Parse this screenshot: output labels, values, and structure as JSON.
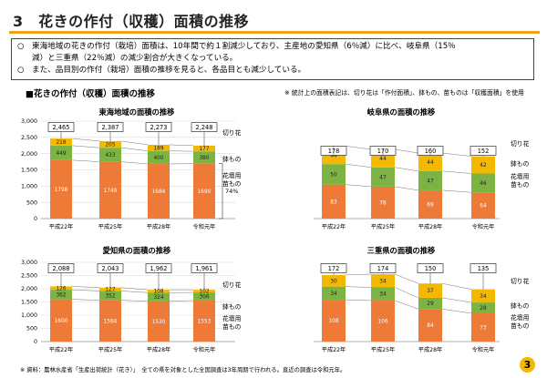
{
  "header": {
    "title": "3　花きの作付（収穫）面積の推移"
  },
  "summary": {
    "bullet": "○",
    "line1": "東海地域の花きの作付（栽培）面積は、10年間で約１割減少しており、主産地の愛知県（6％減）に比べ、岐阜県（15％",
    "line2": "減）と三重県（22％減）の減少割合が大きくなっている。",
    "line3": "また、品目別の作付（栽培）面積の推移を見ると、各品目とも減少している。"
  },
  "section_title": "■花きの作付（収穫）面積の推移",
  "note": "※ 統計上の面積表記は、切り花は「作付面積」、鉢もの、苗ものは「収穫面積」を使用",
  "footer": "※ 資料：農林水産省「生産出荷統計（花き）」　全ての県を対象とした全国調査は3年周期で行われる。直近の調査は令和元年。",
  "page_number": "3",
  "colors": {
    "cut": "#ee7a38",
    "pot": "#7cb342",
    "bed": "#f5b800"
  },
  "chart_data": [
    {
      "type": "bar",
      "title": "東海地域の面積の推移",
      "categories": [
        "平成22年",
        "平成25年",
        "平成28年",
        "令和元年"
      ],
      "series": [
        {
          "name": "切り花",
          "values": [
            1798,
            1749,
            1684,
            1690
          ]
        },
        {
          "name": "鉢もの",
          "values": [
            449,
            433,
            400,
            380
          ]
        },
        {
          "name": "花壇用苗もの",
          "values": [
            218,
            205,
            189,
            177
          ]
        }
      ],
      "totals": [
        2465,
        2387,
        2273,
        2248
      ],
      "ylim": [
        0,
        3000
      ],
      "yticks": [
        "0",
        "500",
        "1,000",
        "1,500",
        "2,000",
        "2,500",
        "3,000"
      ],
      "annotation": "74%",
      "legend_position": "right"
    },
    {
      "type": "bar",
      "title": "岐阜県の面積の推移",
      "categories": [
        "平成22年",
        "平成25年",
        "平成28年",
        "令和元年"
      ],
      "series": [
        {
          "name": "切り花",
          "values": [
            83,
            78,
            69,
            64
          ]
        },
        {
          "name": "鉢もの",
          "values": [
            50,
            47,
            47,
            46
          ]
        },
        {
          "name": "花壇用苗もの",
          "values": [
            44,
            44,
            44,
            42
          ]
        }
      ],
      "totals": [
        178,
        170,
        160,
        152
      ],
      "ylim": [
        0,
        200
      ],
      "legend_position": "right"
    },
    {
      "type": "bar",
      "title": "愛知県の面積の推移",
      "categories": [
        "平成22年",
        "平成25年",
        "平成28年",
        "令和元年"
      ],
      "series": [
        {
          "name": "切り花",
          "values": [
            1600,
            1564,
            1530,
            1553
          ]
        },
        {
          "name": "鉢もの",
          "values": [
            362,
            352,
            324,
            306
          ]
        },
        {
          "name": "花壇用苗もの",
          "values": [
            126,
            127,
            108,
            102
          ]
        }
      ],
      "totals": [
        2088,
        2043,
        1962,
        1961
      ],
      "ylim": [
        0,
        3000
      ],
      "yticks": [
        "0",
        "500",
        "1,000",
        "1,500",
        "2,000",
        "2,500",
        "3,000"
      ],
      "legend_position": "right"
    },
    {
      "type": "bar",
      "title": "三重県の面積の推移",
      "categories": [
        "平成22年",
        "平成25年",
        "平成28年",
        "令和元年"
      ],
      "series": [
        {
          "name": "切り花",
          "values": [
            108,
            106,
            84,
            73
          ]
        },
        {
          "name": "鉢もの",
          "values": [
            34,
            34,
            29,
            28
          ]
        },
        {
          "name": "花壇用苗もの",
          "values": [
            30,
            34,
            37,
            34
          ]
        }
      ],
      "totals": [
        172,
        174,
        150,
        135
      ],
      "ylim": [
        0,
        200
      ],
      "legend_position": "right"
    }
  ]
}
